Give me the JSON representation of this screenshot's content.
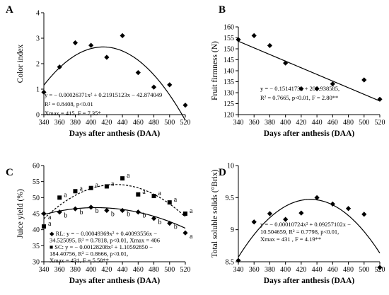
{
  "chart_data": [
    {
      "type": "scatter",
      "panel_label": "A",
      "xlabel": "Days after anthesis (DAA)",
      "ylabel": "Color index",
      "xlim": [
        340,
        520
      ],
      "ylim": [
        0,
        4
      ],
      "xticks": [
        "340",
        "360",
        "380",
        "400",
        "420",
        "440",
        "460",
        "480",
        "500",
        "520"
      ],
      "yticks": [
        "0",
        "1",
        "2",
        "3",
        "4"
      ],
      "series": [
        {
          "x": [
            340,
            360,
            380,
            400,
            420,
            440,
            460,
            480,
            500,
            520
          ],
          "y": [
            0.88,
            1.87,
            2.82,
            2.72,
            2.25,
            3.1,
            1.65,
            1.08,
            1.17,
            0.37
          ]
        }
      ],
      "fit": {
        "kind": "quadratic",
        "coef": [
          -42.874049,
          0.21915123,
          -0.00026371
        ]
      },
      "annotation": [
        "y = − 0.00026371x² + 0.21915123x − 42.874049",
        "R² = 0.8408, p<0.01",
        "Xmax = 415, F = 7.35*"
      ]
    },
    {
      "type": "scatter",
      "panel_label": "B",
      "xlabel": "Days after anthesis (DAA)",
      "ylabel": "Fruit firmness (N)",
      "xlim": [
        340,
        520
      ],
      "ylim": [
        120,
        160
      ],
      "xticks": [
        "340",
        "360",
        "380",
        "400",
        "420",
        "440",
        "460",
        "480",
        "500",
        "520"
      ],
      "yticks": [
        "120",
        "125",
        "130",
        "135",
        "140",
        "145",
        "150",
        "155",
        "160"
      ],
      "series": [
        {
          "x": [
            340,
            360,
            380,
            400,
            420,
            440,
            460,
            500,
            520
          ],
          "y": [
            154.2,
            156,
            151.5,
            143.5,
            131.8,
            131.8,
            134,
            135.8,
            127
          ]
        }
      ],
      "fit": {
        "kind": "linear",
        "coef": [
          204.938585,
          -0.1514173
        ]
      },
      "annotation": [
        "y = − 0.1514173x + 204.938585,",
        "R² = 0.7665, p<0.01, F = 2.80**"
      ]
    },
    {
      "type": "scatter",
      "panel_label": "C",
      "xlabel": "Days after anthesis (DAA)",
      "ylabel": "Juice yield (%)",
      "xlim": [
        340,
        520
      ],
      "ylim": [
        30,
        60
      ],
      "xticks": [
        "340",
        "360",
        "380",
        "400",
        "420",
        "440",
        "460",
        "480",
        "500",
        "520"
      ],
      "yticks": [
        "30",
        "35",
        "40",
        "45",
        "50",
        "55",
        "60"
      ],
      "series": [
        {
          "name": "RL",
          "marker": "diamond",
          "x": [
            340,
            360,
            380,
            400,
            420,
            440,
            460,
            480,
            500,
            520
          ],
          "y": [
            45,
            45.5,
            46.5,
            47,
            46,
            46,
            45.5,
            43.5,
            42,
            39
          ],
          "letters": [
            "a",
            "b",
            "b",
            "b",
            "b",
            "b",
            "b",
            "b",
            "b",
            "a"
          ]
        },
        {
          "name": "SC",
          "marker": "square",
          "x": [
            340,
            360,
            380,
            400,
            420,
            440,
            460,
            480,
            500,
            520
          ],
          "y": [
            41,
            50,
            52,
            53,
            53.5,
            56,
            51,
            50.5,
            48.5,
            45
          ],
          "letters": [
            "a",
            "a",
            "a",
            "a",
            "a",
            "a",
            "a",
            "a",
            "a",
            "a"
          ]
        }
      ],
      "fits": [
        {
          "series": "RL",
          "kind": "quadratic",
          "style": "solid",
          "coef": [
            -34.525095,
            0.40093556,
            -0.00049369
          ]
        },
        {
          "series": "SC",
          "kind": "quadratic",
          "style": "dashed",
          "coef": [
            -184.40756,
            1.1059285,
            -0.00128208
          ]
        }
      ],
      "annotation": [
        "◆ RL: y = − 0.00049369x² + 0.40093556x −",
        "34.525095, R² = 0.7818, p<0.01, Xmax = 406",
        "■ SC: y = − 0.00128208x² + 1.10592850 −",
        "184.40756, R² = 0.8666, p<0.01,",
        "Xmax = 431, F = 5.58**"
      ]
    },
    {
      "type": "scatter",
      "panel_label": "D",
      "xlabel": "Days after anthesis (DAA)",
      "ylabel": "Total soluble solids (°Brix)",
      "xlim": [
        340,
        520
      ],
      "ylim": [
        8.5,
        10
      ],
      "xticks": [
        "340",
        "360",
        "380",
        "400",
        "420",
        "440",
        "460",
        "480",
        "500",
        "520"
      ],
      "yticks": [
        "8.5",
        "9",
        "9.5",
        "10"
      ],
      "ytick_values": [
        8.5,
        9,
        9.5,
        10
      ],
      "series": [
        {
          "x": [
            340,
            360,
            380,
            400,
            420,
            440,
            460,
            480,
            500,
            520
          ],
          "y": [
            8.52,
            9.12,
            9.25,
            9.16,
            9.26,
            9.5,
            9.4,
            9.33,
            9.24,
            8.41
          ]
        }
      ],
      "fit": {
        "kind": "quadratic",
        "coef": [
          -10.504659,
          0.09257102,
          -0.00010724
        ]
      },
      "annotation": [
        "y = − 0.00010724x² + 0.09257102x −",
        "10.504659, R² = 0.7798, p<0.01,",
        "Xmax = 431 , F = 4.19**"
      ]
    }
  ]
}
